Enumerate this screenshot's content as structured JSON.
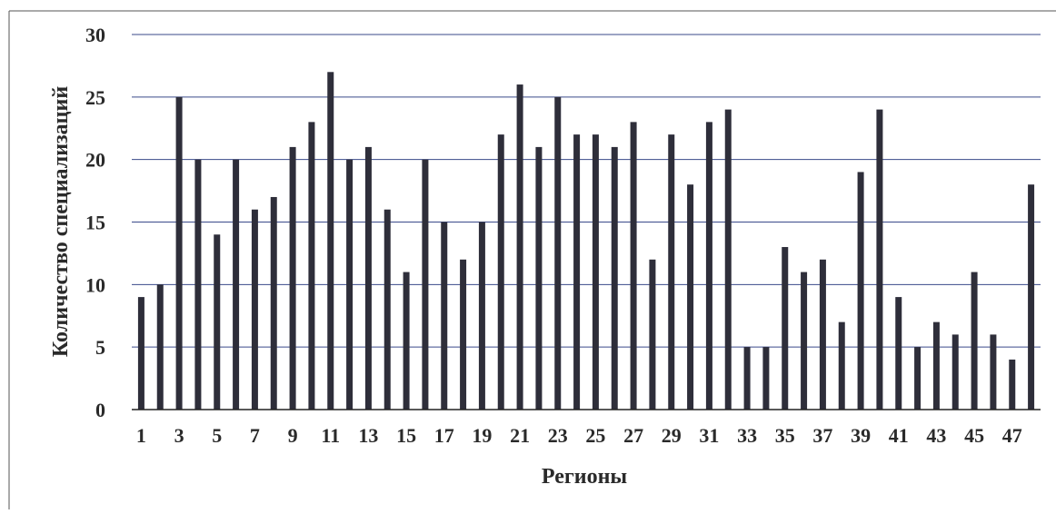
{
  "chart_data": {
    "type": "bar",
    "xlabel": "Регионы",
    "ylabel": "Количество специализаций",
    "ylim": [
      0,
      30
    ],
    "yticks": [
      0,
      5,
      10,
      15,
      20,
      25,
      30
    ],
    "grid": true,
    "bar_color": "#2e2e3a",
    "grid_color": "#3a4a8a",
    "categories": [
      1,
      2,
      3,
      4,
      5,
      6,
      7,
      8,
      9,
      10,
      11,
      12,
      13,
      14,
      15,
      16,
      17,
      18,
      19,
      20,
      21,
      22,
      23,
      24,
      25,
      26,
      27,
      28,
      29,
      30,
      31,
      32,
      33,
      34,
      35,
      36,
      37,
      38,
      39,
      40,
      41,
      42,
      43,
      44,
      45,
      46,
      47,
      48
    ],
    "xtick_labels": [
      "1",
      "",
      "3",
      "",
      "5",
      "",
      "7",
      "",
      "9",
      "",
      "11",
      "",
      "13",
      "",
      "15",
      "",
      "17",
      "",
      "19",
      "",
      "21",
      "",
      "23",
      "",
      "25",
      "",
      "27",
      "",
      "29",
      "",
      "31",
      "",
      "33",
      "",
      "35",
      "",
      "37",
      "",
      "39",
      "",
      "41",
      "",
      "43",
      "",
      "45",
      "",
      "47",
      ""
    ],
    "values": [
      9,
      10,
      25,
      20,
      14,
      20,
      16,
      17,
      21,
      23,
      27,
      20,
      21,
      16,
      11,
      20,
      15,
      12,
      15,
      22,
      26,
      21,
      25,
      22,
      22,
      21,
      23,
      12,
      22,
      18,
      23,
      24,
      5,
      5,
      13,
      11,
      12,
      7,
      19,
      24,
      9,
      5,
      7,
      6,
      11,
      6,
      4,
      18
    ]
  }
}
